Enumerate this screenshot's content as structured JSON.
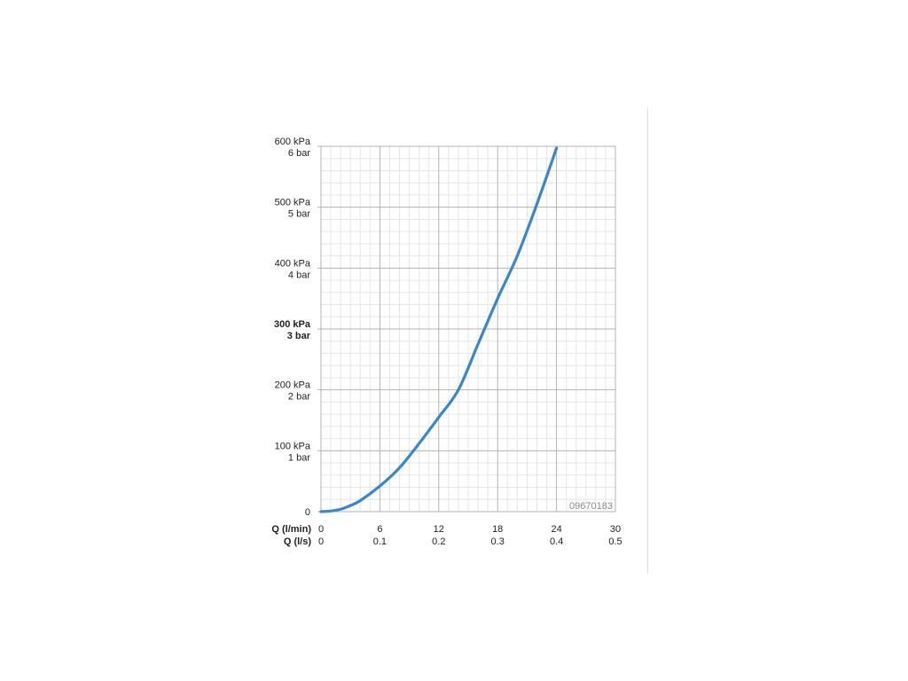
{
  "chart_data": {
    "type": "line",
    "title": "",
    "xlabel": "",
    "ylabel": "",
    "x_axis_rows": [
      {
        "label": "Q (l/min)",
        "ticks": [
          "0",
          "6",
          "12",
          "18",
          "24",
          "30"
        ]
      },
      {
        "label": "Q (l/s)",
        "ticks": [
          "0",
          "0.1",
          "0.2",
          "0.3",
          "0.4",
          "0.5"
        ]
      }
    ],
    "y_ticks": [
      {
        "kpa": "0",
        "bar": "",
        "value": 0,
        "bold": false
      },
      {
        "kpa": "100 kPa",
        "bar": "1 bar",
        "value": 100,
        "bold": false
      },
      {
        "kpa": "200 kPa",
        "bar": "2 bar",
        "value": 200,
        "bold": false
      },
      {
        "kpa": "300 kPa",
        "bar": "3 bar",
        "value": 300,
        "bold": true
      },
      {
        "kpa": "400 kPa",
        "bar": "4 bar",
        "value": 400,
        "bold": false
      },
      {
        "kpa": "500 kPa",
        "bar": "5 bar",
        "value": 500,
        "bold": false
      },
      {
        "kpa": "600 kPa",
        "bar": "6 bar",
        "value": 600,
        "bold": false
      }
    ],
    "xlim": [
      0,
      30
    ],
    "ylim": [
      0,
      600
    ],
    "grid": true,
    "series": [
      {
        "color": "#3b86c6",
        "x": [
          0,
          1,
          2,
          3,
          4,
          6,
          8,
          10,
          12,
          14,
          16,
          18,
          20,
          22,
          24
        ],
        "y": [
          0,
          1,
          4,
          10,
          18,
          42,
          72,
          112,
          155,
          200,
          275,
          350,
          420,
          505,
          597
        ]
      }
    ],
    "annotation": "09670183"
  }
}
